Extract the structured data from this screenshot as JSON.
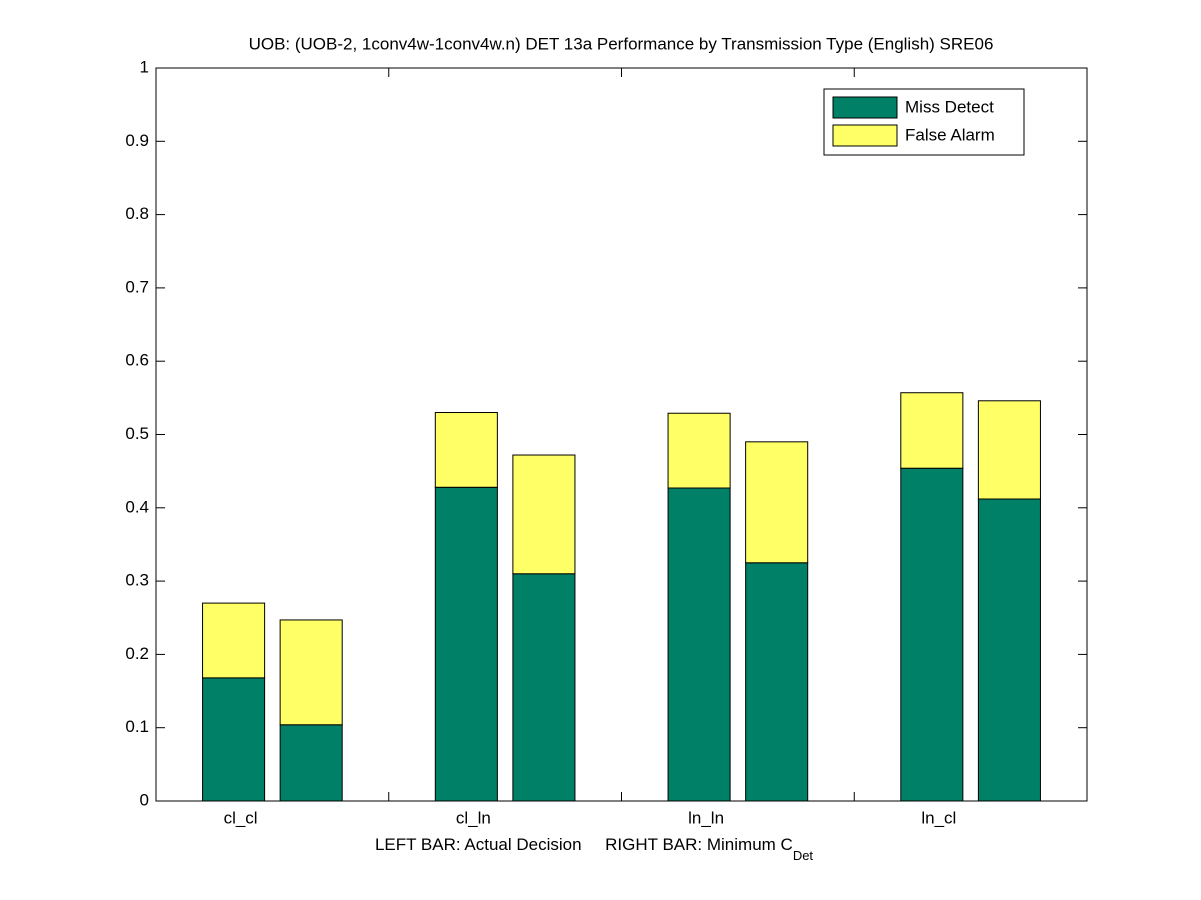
{
  "chart_data": {
    "type": "stacked_bar",
    "title": "UOB: (UOB-2, 1conv4w-1conv4w.n) DET 13a Performance by Transmission Type (English) SRE06",
    "xlabel": "LEFT BAR: Actual Decision     RIGHT BAR: Minimum C",
    "xlabel_subscript": "Det",
    "categories": [
      "cl_cl",
      "cl_ln",
      "ln_ln",
      "ln_cl"
    ],
    "x": [
      1,
      2,
      4,
      5,
      7,
      8,
      10,
      11
    ],
    "series": [
      {
        "name": "Miss Detect",
        "color": "#008066",
        "values": [
          0.168,
          0.104,
          0.428,
          0.31,
          0.427,
          0.325,
          0.454,
          0.412
        ]
      },
      {
        "name": "False Alarm",
        "color": "#ffff66",
        "values": [
          0.102,
          0.143,
          0.102,
          0.162,
          0.102,
          0.165,
          0.103,
          0.134
        ]
      }
    ],
    "xlim": [
      0,
      12
    ],
    "xticks": [
      3,
      6,
      9
    ],
    "ylim": [
      0,
      1
    ],
    "yticks": [
      0,
      0.1,
      0.2,
      0.3,
      0.4,
      0.5,
      0.6,
      0.7,
      0.8,
      0.9,
      1
    ],
    "legend": "upper right"
  }
}
